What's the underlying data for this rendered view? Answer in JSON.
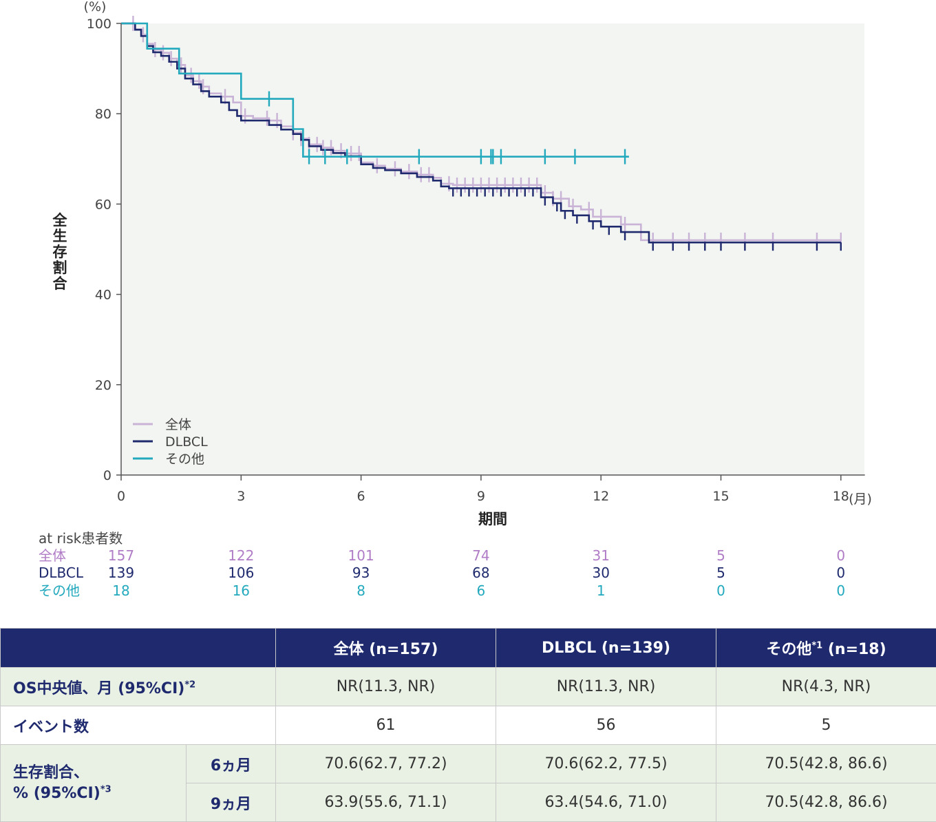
{
  "chart_data": {
    "type": "line",
    "subtype": "kaplan-meier",
    "y_unit": "(%)",
    "ylabel": "全生存割合",
    "xlabel": "期間",
    "x_unit": "(月)",
    "xlim": [
      0,
      18.6
    ],
    "ylim": [
      0,
      100
    ],
    "x_ticks": [
      0,
      3,
      6,
      9,
      12,
      15,
      18
    ],
    "y_ticks": [
      0,
      20,
      40,
      60,
      80,
      100
    ],
    "grid": false,
    "legend_position": "bottom-left",
    "series": [
      {
        "name": "全体",
        "color": "#c9b3d6",
        "x": [
          0,
          0.35,
          0.5,
          0.65,
          0.8,
          1.0,
          1.2,
          1.4,
          1.6,
          1.8,
          2.0,
          2.2,
          2.5,
          2.8,
          3.0,
          3.3,
          3.7,
          4.0,
          4.3,
          4.5,
          4.7,
          5.0,
          5.3,
          5.6,
          6.0,
          6.3,
          6.6,
          7.0,
          7.4,
          7.8,
          8.0,
          8.3,
          10.5,
          10.8,
          11.2,
          11.5,
          11.8,
          12.5,
          13.0,
          18.0
        ],
        "y": [
          100,
          98.7,
          97.5,
          95.5,
          94.2,
          93.5,
          92.2,
          90.8,
          88.5,
          87.2,
          86.0,
          84.5,
          83.8,
          82.5,
          79.5,
          79.0,
          78.5,
          77.2,
          75.8,
          74.5,
          73.2,
          72.5,
          71.8,
          71.2,
          69.2,
          68.5,
          67.8,
          67.2,
          66.5,
          65.8,
          64.5,
          64.2,
          62.5,
          61.2,
          59.5,
          58.8,
          57.2,
          55.5,
          52.0,
          52.0
        ],
        "censor_x": [
          0.3,
          0.55,
          0.85,
          1.05,
          1.25,
          1.5,
          1.75,
          1.95,
          2.05,
          2.6,
          3.1,
          3.65,
          3.9,
          4.3,
          4.5,
          4.7,
          4.9,
          5.05,
          5.25,
          5.5,
          5.75,
          5.95,
          6.4,
          6.85,
          7.2,
          7.5,
          7.7,
          8.2,
          8.4,
          8.6,
          8.8,
          9.0,
          9.2,
          9.4,
          9.6,
          9.8,
          10.0,
          10.2,
          10.4,
          10.6,
          10.8,
          11.0,
          11.3,
          11.7,
          12.0,
          12.6,
          13.3,
          13.8,
          14.2,
          14.6,
          15.0,
          15.6,
          16.3,
          17.4,
          18.0
        ]
      },
      {
        "name": "DLBCL",
        "color": "#1f2a6e",
        "x": [
          0,
          0.35,
          0.5,
          0.65,
          0.8,
          1.0,
          1.2,
          1.4,
          1.6,
          1.8,
          2.0,
          2.2,
          2.5,
          2.7,
          2.9,
          3.0,
          3.3,
          3.7,
          4.0,
          4.3,
          4.5,
          4.7,
          5.0,
          5.3,
          5.6,
          6.0,
          6.3,
          6.6,
          7.0,
          7.4,
          7.8,
          8.0,
          8.2,
          10.5,
          10.8,
          11.0,
          11.3,
          11.7,
          12.0,
          12.5,
          13.2,
          18.0
        ],
        "y": [
          100,
          98.6,
          97.2,
          95.0,
          93.6,
          92.8,
          91.5,
          90.0,
          87.8,
          86.5,
          85.0,
          83.8,
          82.5,
          80.8,
          79.5,
          78.5,
          78.5,
          77.5,
          76.5,
          75.5,
          74.2,
          72.8,
          72.0,
          71.3,
          70.6,
          68.8,
          68.0,
          67.5,
          66.8,
          66.0,
          65.2,
          63.9,
          63.5,
          61.5,
          60.2,
          58.5,
          57.5,
          56.2,
          55.0,
          53.8,
          51.5,
          51.5
        ],
        "censor_x": [
          8.3,
          8.5,
          8.7,
          8.9,
          9.1,
          9.3,
          9.5,
          9.7,
          9.9,
          10.1,
          10.3,
          10.6,
          10.9,
          11.1,
          11.4,
          11.8,
          12.2,
          12.6,
          13.3,
          13.8,
          14.2,
          14.6,
          15.0,
          15.6,
          16.3,
          17.4,
          18.0
        ]
      },
      {
        "name": "その他",
        "color": "#22a9bd",
        "x": [
          0,
          0.65,
          1.4,
          1.45,
          3.0,
          4.3,
          4.55,
          12.7
        ],
        "y": [
          100,
          94.4,
          94.4,
          88.9,
          83.3,
          76.6,
          70.5,
          70.5
        ],
        "censor_x": [
          3.7,
          4.7,
          5.1,
          5.65,
          7.45,
          9.0,
          9.25,
          9.3,
          9.5,
          10.6,
          11.35,
          12.6
        ]
      }
    ],
    "risk_table": {
      "title": "at risk患者数",
      "times": [
        0,
        3,
        6,
        9,
        12,
        15,
        18
      ],
      "rows": [
        {
          "label": "全体",
          "color": "#b07cc6",
          "values": [
            "157",
            "122",
            "101",
            "74",
            "31",
            "5",
            "0"
          ]
        },
        {
          "label": "DLBCL",
          "color": "#1f2a6e",
          "values": [
            "139",
            "106",
            "93",
            "68",
            "30",
            "5",
            "0"
          ]
        },
        {
          "label": "その他",
          "color": "#22a9bd",
          "values": [
            "18",
            "16",
            "8",
            "6",
            "1",
            "0",
            "0"
          ]
        }
      ]
    }
  },
  "table": {
    "col_all": "全体 (n=157)",
    "col_dlbcl": "DLBCL (n=139)",
    "col_other": "その他",
    "col_other_sup": "*1",
    "col_other_n": " (n=18)",
    "os_label": "OS中央値、月 (95%CI)",
    "os_sup": "*2",
    "os_all": "NR(11.3, NR)",
    "os_dlbcl": "NR(11.3, NR)",
    "os_other": "NR(4.3, NR)",
    "events_label": "イベント数",
    "events_all": "61",
    "events_dlbcl": "56",
    "events_other": "5",
    "surv_label_1": "生存割合、",
    "surv_label_2": "% (95%CI)",
    "surv_sup": "*3",
    "m6_label": "6ヵ月",
    "m6_all": "70.6(62.7, 77.2)",
    "m6_dlbcl": "70.6(62.2, 77.5)",
    "m6_other": "70.5(42.8, 86.6)",
    "m9_label": "9ヵ月",
    "m9_all": "63.9(55.6, 71.1)",
    "m9_dlbcl": "63.4(54.6, 71.0)",
    "m9_other": "70.5(42.8, 86.6)"
  }
}
